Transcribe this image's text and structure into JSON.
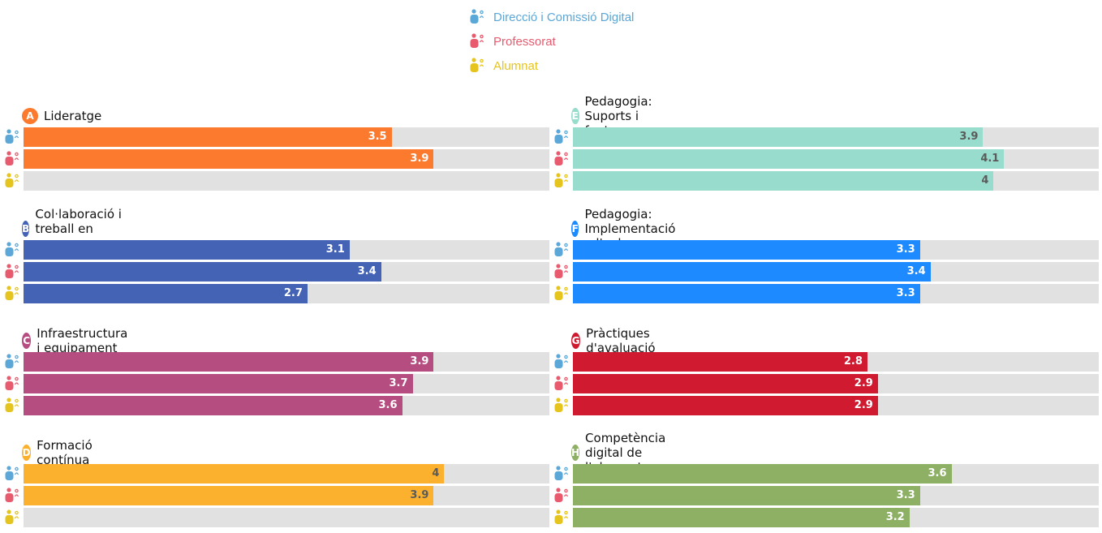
{
  "legend": [
    {
      "key": "direccio",
      "label": "Direcció i Comissió Digital",
      "color": "#5aa7d8",
      "icon": "direccio-person-icon"
    },
    {
      "key": "professorat",
      "label": "Professorat",
      "color": "#e85a6e",
      "icon": "teacher-person-icon"
    },
    {
      "key": "alumnat",
      "label": "Alumnat",
      "color": "#e6c41e",
      "icon": "student-person-icon"
    }
  ],
  "chart_data": {
    "type": "bar",
    "orientation": "horizontal",
    "xlim": [
      0,
      5
    ],
    "series_names": [
      "Direcció i Comissió Digital",
      "Professorat",
      "Alumnat"
    ],
    "panels": [
      {
        "letter": "A",
        "title": "Lideratge",
        "color": "#fc7a2e",
        "label_color": "#ffffff",
        "values": [
          3.5,
          3.9,
          null
        ]
      },
      {
        "letter": "B",
        "title": "Col·laboració i treball en xarxa",
        "color": "#4463b4",
        "label_color": "#ffffff",
        "values": [
          3.1,
          3.4,
          2.7
        ]
      },
      {
        "letter": "C",
        "title": "Infraestructura i equipament",
        "color": "#b54d80",
        "label_color": "#ffffff",
        "values": [
          3.9,
          3.7,
          3.6
        ]
      },
      {
        "letter": "D",
        "title": "Formació contínua",
        "color": "#fbb12e",
        "label_color": "#5a5a5a",
        "values": [
          4,
          3.9,
          null
        ]
      },
      {
        "letter": "E",
        "title": "Pedagogia: Suports i fonts",
        "color": "#98dccd",
        "label_color": "#5a5a5a",
        "values": [
          3.9,
          4.1,
          4
        ]
      },
      {
        "letter": "F",
        "title": "Pedagogia: Implementació a l'aula",
        "color": "#1e8aff",
        "label_color": "#ffffff",
        "values": [
          3.3,
          3.4,
          3.3
        ]
      },
      {
        "letter": "G",
        "title": "Pràctiques d'avaluació",
        "color": "#cf1a30",
        "label_color": "#ffffff",
        "values": [
          2.8,
          2.9,
          2.9
        ]
      },
      {
        "letter": "H",
        "title": "Competència digital de l'alumnat",
        "color": "#8db065",
        "label_color": "#ffffff",
        "values": [
          3.6,
          3.3,
          3.2
        ]
      }
    ]
  }
}
